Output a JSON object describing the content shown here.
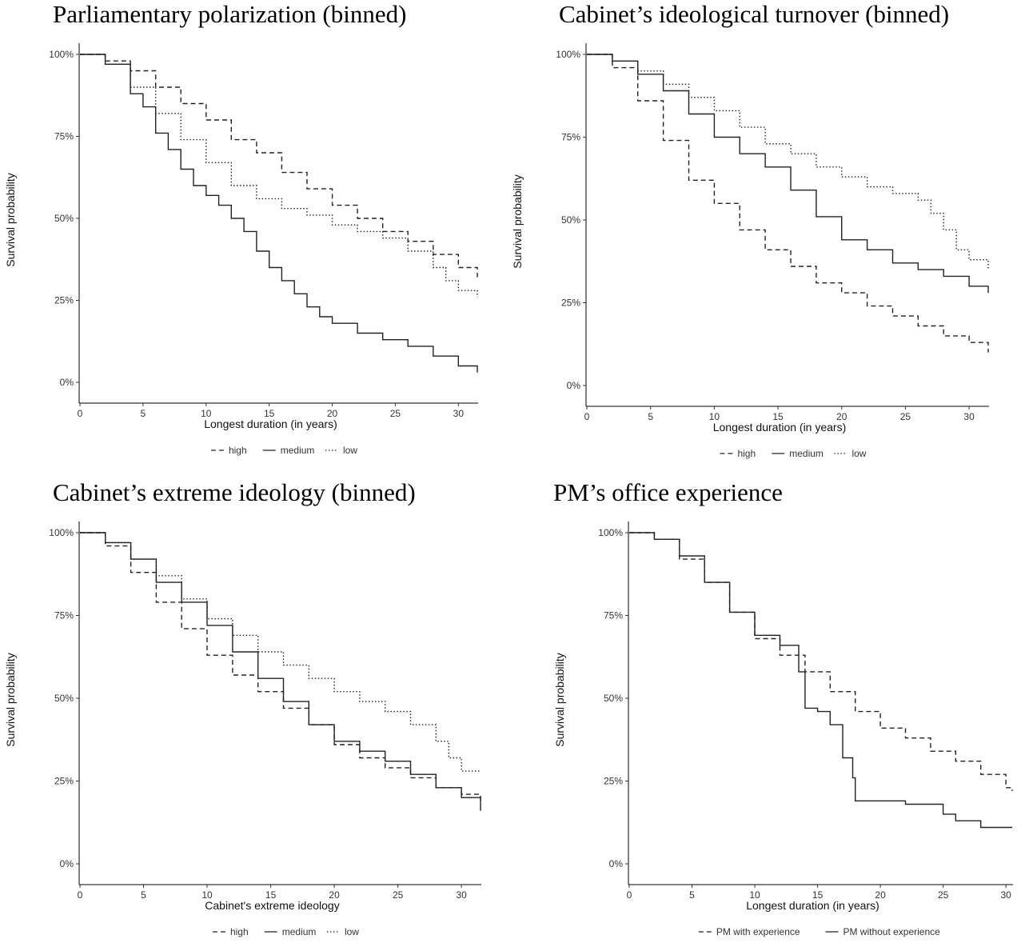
{
  "chart_data": [
    {
      "type": "line",
      "title": "Parliamentary polarization (binned)",
      "xlabel": "Longest duration (in years)",
      "ylabel": "Survival probability",
      "xlim": [
        0,
        31.5
      ],
      "ylim": [
        0,
        100
      ],
      "xticks": [
        "0",
        "5",
        "10",
        "15",
        "20",
        "25",
        "30"
      ],
      "yticks": [
        "0%",
        "25%",
        "50%",
        "75%",
        "100%"
      ],
      "grid": false,
      "legend": "bottom",
      "series": [
        {
          "name": "high",
          "style": "dashed",
          "x": [
            0,
            2,
            4,
            6,
            8,
            10,
            12,
            14,
            16,
            18,
            20,
            22,
            24,
            26,
            28,
            30,
            31.5
          ],
          "values": [
            100,
            98,
            95,
            90,
            85,
            80,
            74,
            70,
            64,
            59,
            54,
            50,
            46,
            43,
            39,
            35,
            32
          ]
        },
        {
          "name": "medium",
          "style": "solid",
          "x": [
            0,
            2,
            4,
            5,
            6,
            7,
            8,
            9,
            10,
            11,
            12,
            13,
            14,
            15,
            16,
            17,
            18,
            19,
            20,
            22,
            24,
            26,
            28,
            30,
            31.5
          ],
          "values": [
            100,
            97,
            88,
            84,
            76,
            71,
            65,
            60,
            57,
            54,
            50,
            46,
            40,
            35,
            31,
            27,
            23,
            20,
            18,
            15,
            13,
            11,
            8,
            5,
            3
          ]
        },
        {
          "name": "low",
          "style": "dotted",
          "x": [
            0,
            2,
            4,
            6,
            8,
            10,
            12,
            14,
            16,
            18,
            20,
            22,
            24,
            26,
            28,
            29,
            30,
            31.5
          ],
          "values": [
            100,
            97,
            90,
            82,
            74,
            67,
            60,
            56,
            53,
            51,
            48,
            46,
            44,
            40,
            35,
            31,
            28,
            26
          ]
        }
      ]
    },
    {
      "type": "line",
      "title": "Cabinet’s ideological turnover (binned)",
      "xlabel": "Longest duration (in years)",
      "ylabel": "Survival probability",
      "xlim": [
        0,
        31.5
      ],
      "ylim": [
        0,
        100
      ],
      "xticks": [
        "0",
        "5",
        "10",
        "15",
        "20",
        "25",
        "30"
      ],
      "yticks": [
        "0%",
        "25%",
        "50%",
        "75%",
        "100%"
      ],
      "grid": false,
      "legend": "bottom",
      "series": [
        {
          "name": "high",
          "style": "dashed",
          "x": [
            0,
            2,
            4,
            6,
            8,
            10,
            12,
            14,
            16,
            18,
            20,
            22,
            24,
            26,
            28,
            30,
            31.5
          ],
          "values": [
            100,
            96,
            86,
            74,
            62,
            55,
            47,
            41,
            36,
            31,
            28,
            24,
            21,
            18,
            15,
            13,
            10
          ]
        },
        {
          "name": "medium",
          "style": "solid",
          "x": [
            0,
            2,
            4,
            6,
            8,
            10,
            12,
            14,
            16,
            18,
            20,
            22,
            24,
            26,
            28,
            30,
            31.5
          ],
          "values": [
            100,
            98,
            94,
            89,
            82,
            75,
            70,
            66,
            59,
            51,
            44,
            41,
            37,
            35,
            33,
            30,
            28
          ]
        },
        {
          "name": "low",
          "style": "dotted",
          "x": [
            0,
            2,
            4,
            6,
            8,
            10,
            12,
            14,
            16,
            18,
            20,
            22,
            24,
            26,
            27,
            28,
            29,
            30,
            31.5
          ],
          "values": [
            100,
            98,
            95,
            91,
            87,
            83,
            78,
            73,
            70,
            66,
            63,
            60,
            58,
            56,
            52,
            47,
            41,
            38,
            35
          ]
        }
      ]
    },
    {
      "type": "line",
      "title": "Cabinet’s extreme ideology (binned)",
      "xlabel": "Cabinet's extreme ideology",
      "ylabel": "Survival probability",
      "xlim": [
        0,
        31.5
      ],
      "ylim": [
        0,
        100
      ],
      "xticks": [
        "0",
        "5",
        "10",
        "15",
        "20",
        "25",
        "30"
      ],
      "yticks": [
        "0%",
        "25%",
        "50%",
        "75%",
        "100%"
      ],
      "grid": false,
      "legend": "bottom",
      "series": [
        {
          "name": "high",
          "style": "dashed",
          "x": [
            0,
            2,
            4,
            6,
            8,
            10,
            12,
            14,
            16,
            18,
            20,
            22,
            24,
            26,
            28,
            30,
            31.5
          ],
          "values": [
            100,
            96,
            88,
            79,
            71,
            63,
            57,
            52,
            47,
            42,
            36,
            32,
            29,
            26,
            23,
            21,
            19
          ]
        },
        {
          "name": "medium",
          "style": "solid",
          "x": [
            0,
            2,
            4,
            6,
            8,
            10,
            12,
            14,
            16,
            18,
            20,
            22,
            24,
            26,
            28,
            30,
            31.5
          ],
          "values": [
            100,
            97,
            92,
            85,
            79,
            72,
            64,
            56,
            49,
            42,
            37,
            34,
            31,
            27,
            23,
            20,
            16
          ]
        },
        {
          "name": "low",
          "style": "dotted",
          "x": [
            0,
            2,
            4,
            6,
            8,
            10,
            12,
            14,
            16,
            18,
            20,
            22,
            24,
            26,
            28,
            29,
            30,
            31.5
          ],
          "values": [
            100,
            97,
            92,
            87,
            80,
            74,
            69,
            64,
            60,
            56,
            52,
            49,
            46,
            42,
            37,
            32,
            28,
            28
          ]
        }
      ]
    },
    {
      "type": "line",
      "title": "PM’s office experience",
      "xlabel": "Longest duration (in years)",
      "ylabel": "Survival probability",
      "xlim": [
        0,
        30.5
      ],
      "ylim": [
        0,
        100
      ],
      "xticks": [
        "0",
        "5",
        "10",
        "15",
        "20",
        "25",
        "30"
      ],
      "yticks": [
        "0%",
        "25%",
        "50%",
        "75%",
        "100%"
      ],
      "grid": false,
      "legend": "bottom",
      "series": [
        {
          "name": "PM with experience",
          "style": "dashed",
          "x": [
            0,
            2,
            4,
            6,
            8,
            10,
            12,
            14,
            16,
            18,
            20,
            22,
            24,
            26,
            28,
            30,
            30.5
          ],
          "values": [
            100,
            98,
            92,
            85,
            76,
            68,
            63,
            58,
            52,
            46,
            41,
            38,
            34,
            31,
            27,
            23,
            22
          ]
        },
        {
          "name": "PM without experience",
          "style": "solid",
          "x": [
            0,
            2,
            4,
            6,
            8,
            10,
            12,
            13.5,
            14,
            15,
            16,
            16.8,
            17,
            17.8,
            18,
            20,
            22,
            24,
            25,
            26,
            28,
            30,
            30.5
          ],
          "values": [
            100,
            98,
            93,
            85,
            76,
            69,
            66,
            58,
            47,
            46,
            42,
            42,
            32,
            26,
            19,
            19,
            18,
            18,
            15,
            13,
            11,
            11,
            11
          ]
        }
      ]
    }
  ]
}
